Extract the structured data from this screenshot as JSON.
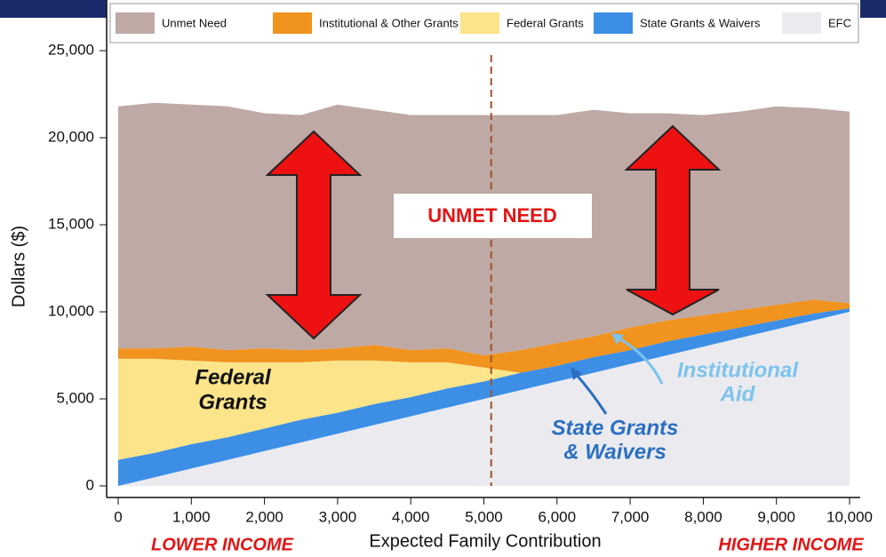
{
  "chart_data": {
    "type": "stacked_area",
    "xlabel": "Expected Family Contribution",
    "ylabel": "Dollars ($)",
    "x": [
      0,
      500,
      1000,
      1500,
      2000,
      2500,
      3000,
      3500,
      4000,
      4500,
      5000,
      5500,
      6000,
      6500,
      7000,
      7500,
      8000,
      8500,
      9000,
      9500,
      10000
    ],
    "series": [
      {
        "name": "Unmet Need",
        "color": "#bfa9a5",
        "values": [
          13900,
          14100,
          13900,
          14000,
          13500,
          13500,
          14000,
          13500,
          13500,
          13400,
          13800,
          13500,
          13100,
          13000,
          12300,
          11900,
          11500,
          11400,
          11400,
          11000,
          11000
        ]
      },
      {
        "name": "Institutional & Other Grants",
        "color": "#f0931f",
        "values": [
          600,
          600,
          800,
          700,
          800,
          700,
          700,
          900,
          700,
          800,
          700,
          1300,
          1300,
          1200,
          1300,
          1200,
          1100,
          1000,
          900,
          800,
          300
        ]
      },
      {
        "name": "Federal Grants",
        "color": "#fbe48a",
        "values": [
          5800,
          5400,
          4800,
          4300,
          3800,
          3300,
          3000,
          2500,
          2000,
          1500,
          800,
          0,
          0,
          0,
          0,
          0,
          0,
          0,
          0,
          0,
          0
        ]
      },
      {
        "name": "State Grants & Waivers",
        "color": "#3d8fe6",
        "values": [
          1500,
          1400,
          1400,
          1300,
          1300,
          1300,
          1200,
          1200,
          1100,
          1100,
          1000,
          1000,
          900,
          900,
          800,
          800,
          700,
          600,
          500,
          400,
          200
        ]
      },
      {
        "name": "EFC",
        "color": "#ebebef",
        "values": [
          0,
          500,
          1000,
          1500,
          2000,
          2500,
          3000,
          3500,
          4000,
          4500,
          5000,
          5500,
          6000,
          6500,
          7000,
          7500,
          8000,
          8500,
          9000,
          9500,
          10000
        ]
      }
    ],
    "xlim": [
      0,
      10000
    ],
    "ylim": [
      0,
      25000
    ],
    "xticks": [
      0,
      {
        "value": 1000,
        "label": "1,000"
      },
      {
        "value": 2000,
        "label": "2,000"
      },
      {
        "value": 3000,
        "label": "3,000"
      },
      {
        "value": 4000,
        "label": "4,000"
      },
      {
        "value": 5000,
        "label": "5,000"
      },
      {
        "value": 6000,
        "label": "6,000"
      },
      {
        "value": 7000,
        "label": "7,000"
      },
      {
        "value": 8000,
        "label": "8,000"
      },
      {
        "value": 9000,
        "label": "9,000"
      },
      {
        "value": 10000,
        "label": "10,000"
      }
    ],
    "yticks": [
      0,
      {
        "value": 5000,
        "label": "5,000"
      },
      {
        "value": 10000,
        "label": "10,000"
      },
      {
        "value": 15000,
        "label": "15,000"
      },
      {
        "value": 20000,
        "label": "20,000"
      },
      {
        "value": 25000,
        "label": "25,000"
      }
    ],
    "reference_line": {
      "x": 5100,
      "color": "#a0522d"
    },
    "annotations": {
      "unmet": "UNMET NEED",
      "federal": [
        "Federal",
        "Grants"
      ],
      "institutional": [
        "Institutional",
        "Aid"
      ],
      "state": [
        "State Grants",
        "& Waivers"
      ],
      "lower": "LOWER INCOME",
      "higher": "HIGHER INCOME"
    }
  }
}
